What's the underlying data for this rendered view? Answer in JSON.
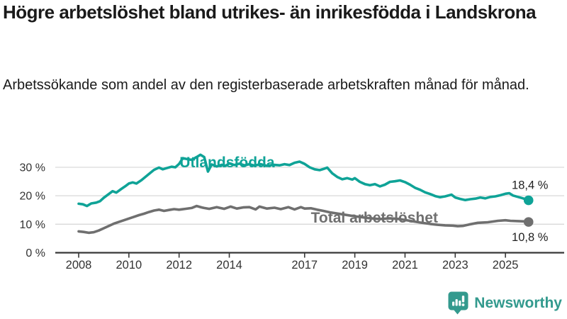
{
  "header": {
    "title": "Högre arbetslöshet bland utrikes- än inrikesfödda i Landskrona",
    "subtitle": "Arbetssökande som andel av den registerbaserade arbetskraften månad för månad."
  },
  "chart_data": {
    "type": "line",
    "title": "",
    "xlabel": "",
    "ylabel": "",
    "y_tick_suffix": " %",
    "y_ticks": [
      0,
      10,
      20,
      30
    ],
    "x_ticks": [
      2008,
      2010,
      2012,
      2014,
      2017,
      2019,
      2021,
      2023,
      2025
    ],
    "x_range": [
      2008,
      2025.95
    ],
    "y_range": [
      0,
      35.5
    ],
    "grid": "horizontal",
    "legend_position": "inline-labels",
    "colors": {
      "grid": "#d9d9d9",
      "axis": "#383838",
      "tick_text": "#333333",
      "annotation_text": "#222222"
    },
    "series": [
      {
        "name": "Utlandsfödda",
        "color": "#0FA397",
        "end_label": "18,4 %",
        "end_label_side": "above",
        "label_pos": {
          "x": 2012.02,
          "y": 30.0
        },
        "points": [
          [
            2008.0,
            17.2
          ],
          [
            2008.17,
            17.0
          ],
          [
            2008.33,
            16.4
          ],
          [
            2008.5,
            17.3
          ],
          [
            2008.7,
            17.6
          ],
          [
            2008.85,
            18.1
          ],
          [
            2009.0,
            19.3
          ],
          [
            2009.2,
            20.6
          ],
          [
            2009.35,
            21.6
          ],
          [
            2009.5,
            21.1
          ],
          [
            2009.7,
            22.4
          ],
          [
            2009.85,
            23.3
          ],
          [
            2010.0,
            24.3
          ],
          [
            2010.15,
            24.7
          ],
          [
            2010.3,
            24.3
          ],
          [
            2010.5,
            25.5
          ],
          [
            2010.7,
            26.9
          ],
          [
            2010.85,
            28.0
          ],
          [
            2011.0,
            29.1
          ],
          [
            2011.2,
            29.9
          ],
          [
            2011.35,
            29.3
          ],
          [
            2011.5,
            29.7
          ],
          [
            2011.7,
            30.2
          ],
          [
            2011.85,
            30.0
          ],
          [
            2012.0,
            31.2
          ],
          [
            2012.15,
            33.2
          ],
          [
            2012.3,
            32.9
          ],
          [
            2012.5,
            32.6
          ],
          [
            2012.7,
            33.6
          ],
          [
            2012.85,
            34.4
          ],
          [
            2013.0,
            33.6
          ],
          [
            2013.15,
            28.5
          ],
          [
            2013.3,
            31.0
          ],
          [
            2013.5,
            30.3
          ],
          [
            2013.7,
            30.9
          ],
          [
            2013.85,
            30.5
          ],
          [
            2014.0,
            31.4
          ],
          [
            2014.2,
            30.8
          ],
          [
            2014.4,
            31.3
          ],
          [
            2014.6,
            30.7
          ],
          [
            2014.8,
            31.1
          ],
          [
            2015.0,
            30.6
          ],
          [
            2015.25,
            31.1
          ],
          [
            2015.5,
            30.5
          ],
          [
            2015.75,
            30.9
          ],
          [
            2016.0,
            30.7
          ],
          [
            2016.2,
            31.1
          ],
          [
            2016.4,
            30.8
          ],
          [
            2016.6,
            31.6
          ],
          [
            2016.8,
            32.0
          ],
          [
            2017.0,
            31.2
          ],
          [
            2017.2,
            30.0
          ],
          [
            2017.4,
            29.3
          ],
          [
            2017.6,
            29.0
          ],
          [
            2017.75,
            29.4
          ],
          [
            2017.9,
            29.9
          ],
          [
            2018.1,
            27.9
          ],
          [
            2018.3,
            26.6
          ],
          [
            2018.5,
            25.8
          ],
          [
            2018.7,
            26.2
          ],
          [
            2018.9,
            25.7
          ],
          [
            2019.0,
            26.2
          ],
          [
            2019.2,
            24.9
          ],
          [
            2019.4,
            24.1
          ],
          [
            2019.6,
            23.7
          ],
          [
            2019.8,
            24.1
          ],
          [
            2020.0,
            23.3
          ],
          [
            2020.2,
            23.9
          ],
          [
            2020.4,
            24.9
          ],
          [
            2020.6,
            25.1
          ],
          [
            2020.8,
            25.4
          ],
          [
            2021.0,
            24.8
          ],
          [
            2021.2,
            23.9
          ],
          [
            2021.4,
            22.8
          ],
          [
            2021.6,
            22.1
          ],
          [
            2021.8,
            21.2
          ],
          [
            2022.0,
            20.6
          ],
          [
            2022.2,
            19.9
          ],
          [
            2022.4,
            19.5
          ],
          [
            2022.6,
            19.8
          ],
          [
            2022.85,
            20.4
          ],
          [
            2023.0,
            19.4
          ],
          [
            2023.2,
            18.9
          ],
          [
            2023.4,
            18.5
          ],
          [
            2023.6,
            18.8
          ],
          [
            2023.8,
            19.0
          ],
          [
            2024.0,
            19.4
          ],
          [
            2024.2,
            19.1
          ],
          [
            2024.4,
            19.6
          ],
          [
            2024.6,
            19.8
          ],
          [
            2024.8,
            20.2
          ],
          [
            2025.0,
            20.7
          ],
          [
            2025.15,
            20.9
          ],
          [
            2025.3,
            20.1
          ],
          [
            2025.5,
            19.6
          ],
          [
            2025.7,
            19.1
          ],
          [
            2025.92,
            18.4
          ]
        ]
      },
      {
        "name": "Total arbetslöshet",
        "color": "#6F6F6F",
        "end_label": "10,8 %",
        "end_label_side": "below",
        "label_pos": {
          "x": 2017.25,
          "y": 10.6
        },
        "points": [
          [
            2008.0,
            7.5
          ],
          [
            2008.2,
            7.3
          ],
          [
            2008.4,
            7.0
          ],
          [
            2008.6,
            7.2
          ],
          [
            2008.8,
            7.8
          ],
          [
            2009.0,
            8.6
          ],
          [
            2009.2,
            9.4
          ],
          [
            2009.4,
            10.2
          ],
          [
            2009.6,
            10.8
          ],
          [
            2009.8,
            11.4
          ],
          [
            2010.0,
            12.0
          ],
          [
            2010.2,
            12.6
          ],
          [
            2010.4,
            13.2
          ],
          [
            2010.6,
            13.7
          ],
          [
            2010.8,
            14.3
          ],
          [
            2011.0,
            14.8
          ],
          [
            2011.2,
            15.1
          ],
          [
            2011.4,
            14.7
          ],
          [
            2011.6,
            15.0
          ],
          [
            2011.8,
            15.3
          ],
          [
            2012.0,
            15.1
          ],
          [
            2012.25,
            15.4
          ],
          [
            2012.5,
            15.7
          ],
          [
            2012.7,
            16.4
          ],
          [
            2012.9,
            15.9
          ],
          [
            2013.0,
            15.7
          ],
          [
            2013.2,
            15.4
          ],
          [
            2013.5,
            16.0
          ],
          [
            2013.8,
            15.4
          ],
          [
            2014.05,
            16.2
          ],
          [
            2014.3,
            15.5
          ],
          [
            2014.55,
            15.9
          ],
          [
            2014.8,
            16.0
          ],
          [
            2015.05,
            15.2
          ],
          [
            2015.2,
            16.2
          ],
          [
            2015.5,
            15.5
          ],
          [
            2015.8,
            15.8
          ],
          [
            2016.05,
            15.3
          ],
          [
            2016.35,
            16.0
          ],
          [
            2016.6,
            15.2
          ],
          [
            2016.85,
            16.0
          ],
          [
            2017.0,
            15.5
          ],
          [
            2017.25,
            15.6
          ],
          [
            2017.5,
            15.1
          ],
          [
            2017.75,
            14.7
          ],
          [
            2018.0,
            14.2
          ],
          [
            2018.5,
            13.5
          ],
          [
            2019.0,
            12.8
          ],
          [
            2019.5,
            12.2
          ],
          [
            2020.0,
            11.8
          ],
          [
            2020.4,
            12.1
          ],
          [
            2020.8,
            11.8
          ],
          [
            2021.2,
            11.2
          ],
          [
            2021.6,
            10.6
          ],
          [
            2022.0,
            10.1
          ],
          [
            2022.3,
            9.8
          ],
          [
            2022.6,
            9.6
          ],
          [
            2022.9,
            9.5
          ],
          [
            2023.1,
            9.3
          ],
          [
            2023.3,
            9.4
          ],
          [
            2023.55,
            9.9
          ],
          [
            2023.9,
            10.5
          ],
          [
            2024.3,
            10.7
          ],
          [
            2024.7,
            11.2
          ],
          [
            2025.0,
            11.4
          ],
          [
            2025.2,
            11.2
          ],
          [
            2025.5,
            11.1
          ],
          [
            2025.75,
            11.0
          ],
          [
            2025.92,
            10.8
          ]
        ]
      }
    ]
  },
  "footer": {
    "brand": "Newsworthy",
    "brand_color": "#339a8e"
  }
}
